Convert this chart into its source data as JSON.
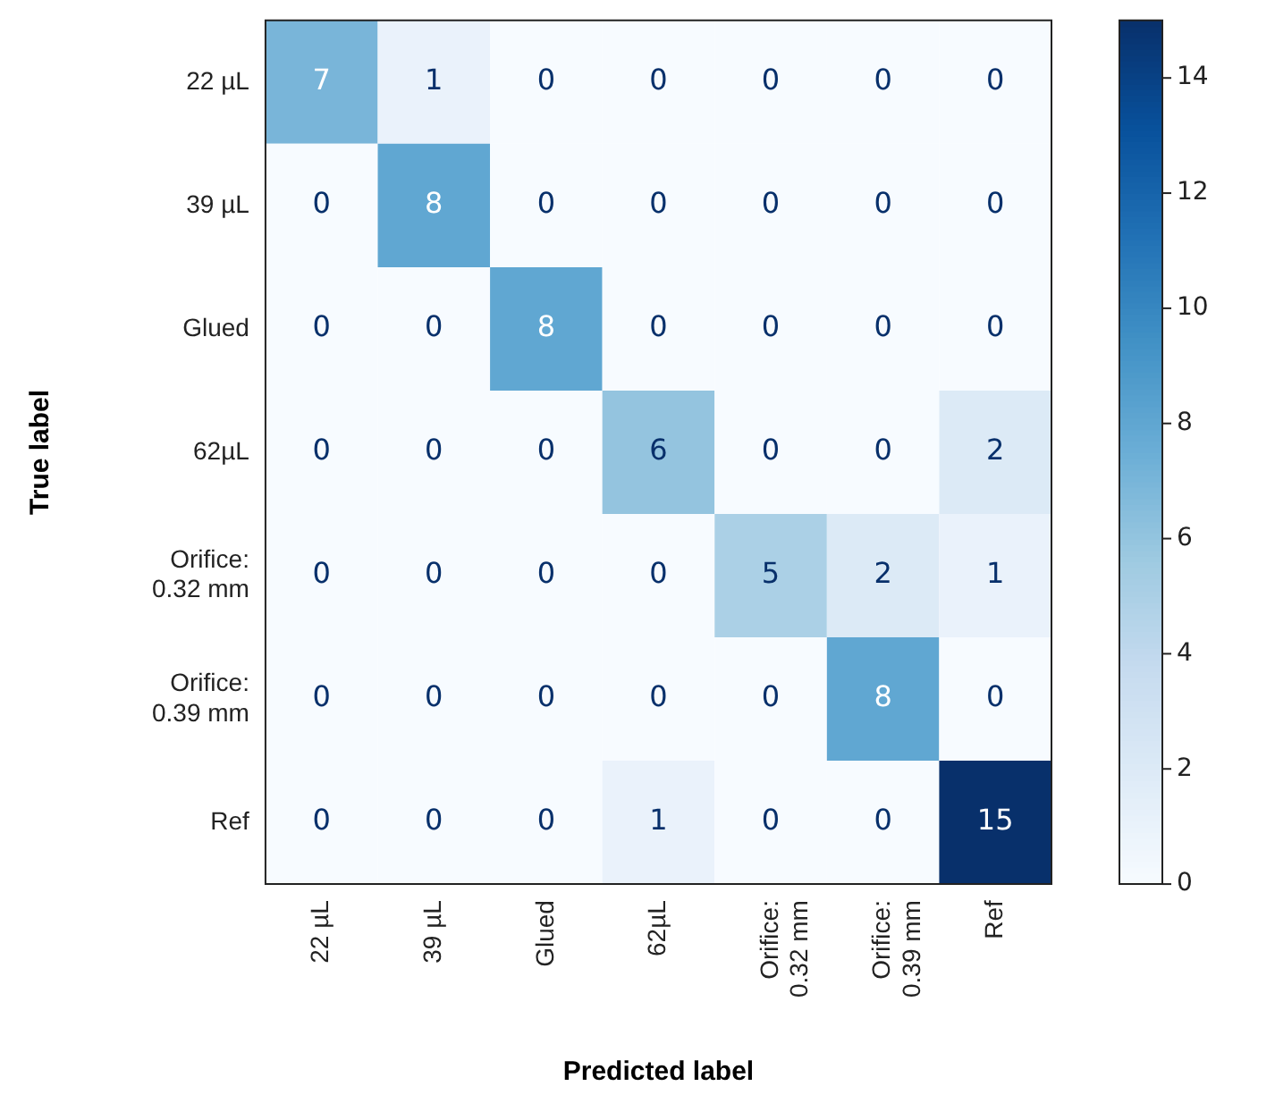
{
  "chart_data": {
    "type": "heatmap",
    "xlabel": "Predicted label",
    "ylabel": "True label",
    "categories": [
      "22 µL",
      "39 µL",
      "Glued",
      "62µL",
      "Orifice:\n0.32 mm",
      "Orifice:\n0.39 mm",
      "Ref"
    ],
    "y_categories": [
      "22 µL",
      "39 µL",
      "Glued",
      "62µL",
      "Orifice:\n0.32 mm",
      "Orifice:\n0.39 mm",
      "Ref"
    ],
    "cells": [
      [
        7,
        1,
        0,
        0,
        0,
        0,
        0
      ],
      [
        0,
        8,
        0,
        0,
        0,
        0,
        0
      ],
      [
        0,
        0,
        8,
        0,
        0,
        0,
        0
      ],
      [
        0,
        0,
        0,
        6,
        0,
        0,
        2
      ],
      [
        0,
        0,
        0,
        0,
        5,
        2,
        1
      ],
      [
        0,
        0,
        0,
        0,
        0,
        8,
        0
      ],
      [
        0,
        0,
        0,
        1,
        0,
        0,
        15
      ]
    ],
    "data_labels": true,
    "clim": [
      0,
      15
    ],
    "cticks": [
      0,
      2,
      4,
      6,
      8,
      10,
      12,
      14
    ]
  }
}
